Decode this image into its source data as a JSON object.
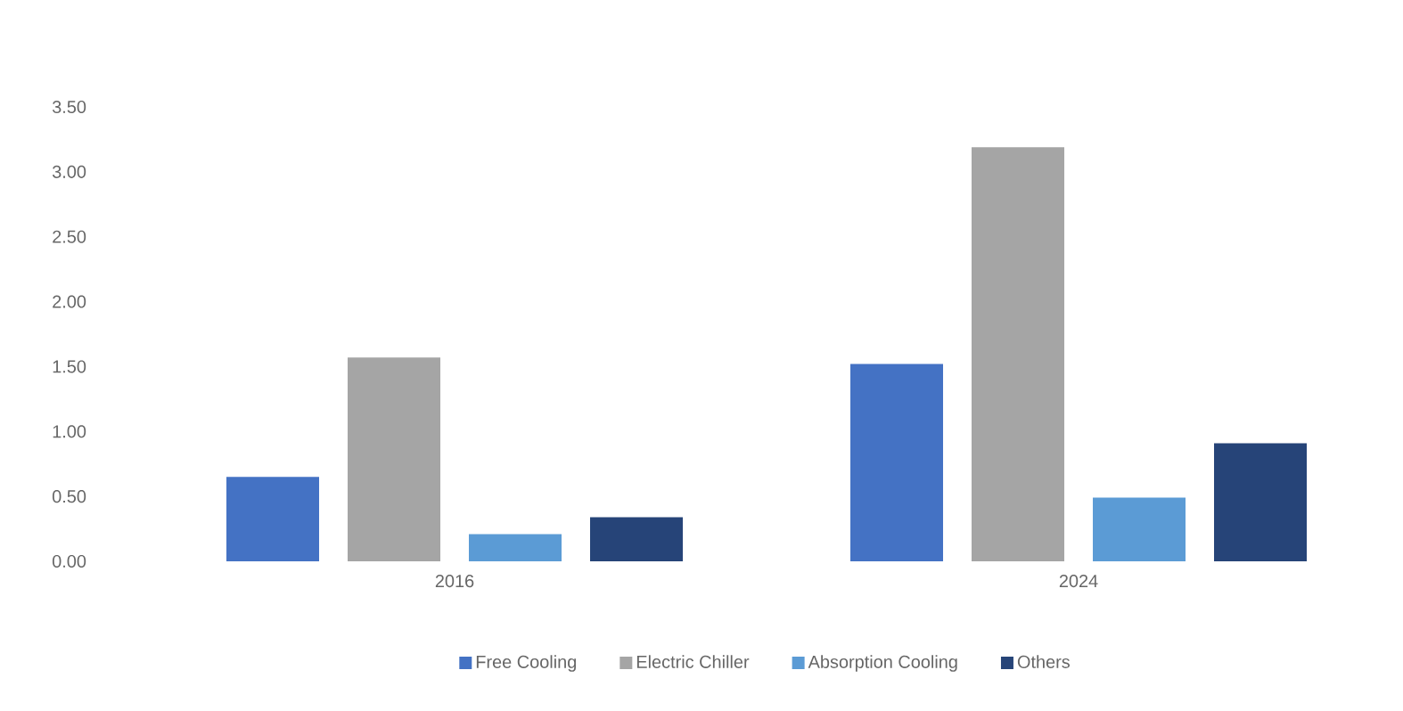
{
  "chart_data": {
    "type": "bar",
    "categories": [
      "2016",
      "2024"
    ],
    "series": [
      {
        "name": "Free Cooling",
        "color": "#4472c4",
        "values": [
          0.65,
          1.52
        ]
      },
      {
        "name": "Electric Chiller",
        "color": "#a5a5a5",
        "values": [
          1.57,
          3.19
        ]
      },
      {
        "name": "Absorption Cooling",
        "color": "#5b9bd5",
        "values": [
          0.21,
          0.49
        ]
      },
      {
        "name": "Others",
        "color": "#264478",
        "values": [
          0.34,
          0.91
        ]
      }
    ],
    "ylim": [
      0,
      3.5
    ],
    "yticks": [
      {
        "value": 0,
        "label": "0.00"
      },
      {
        "value": 0.5,
        "label": "0.50"
      },
      {
        "value": 1,
        "label": "1.00"
      },
      {
        "value": 1.5,
        "label": "1.50"
      },
      {
        "value": 2,
        "label": "2.00"
      },
      {
        "value": 2.5,
        "label": "2.50"
      },
      {
        "value": 3,
        "label": "3.00"
      },
      {
        "value": 3.5,
        "label": "3.50"
      }
    ],
    "grid": false,
    "legend": "bottom"
  }
}
